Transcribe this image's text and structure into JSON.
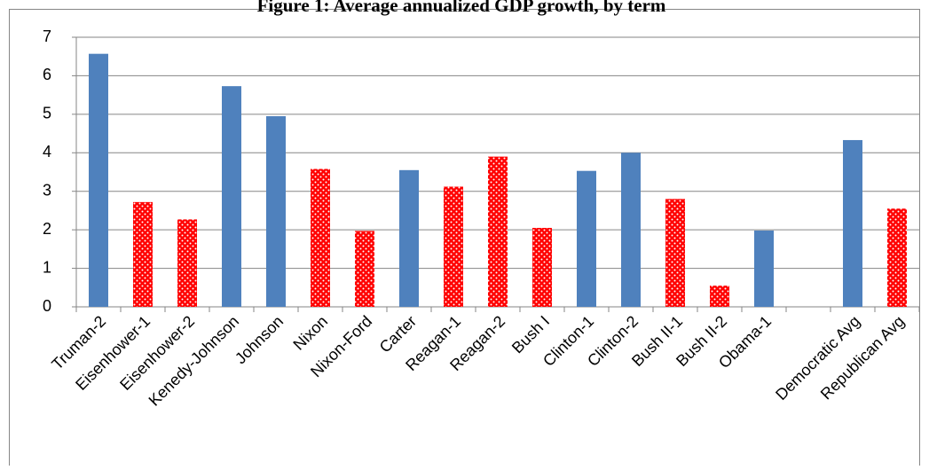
{
  "chart_data": {
    "type": "bar",
    "title": "Figure 1: Average annualized GDP growth, by term",
    "categories": [
      "Truman-2",
      "Eisenhower-1",
      "Eisenhower-2",
      "Kenedy-Johnson",
      "Johnson",
      "Nixon",
      "Nixon-Ford",
      "Carter",
      "Reagan-1",
      "Reagan-2",
      "Bush I",
      "Clinton-1",
      "Clinton-2",
      "Bush II-1",
      "Bush II-2",
      "Obama-1",
      null,
      "Democratic Avg",
      "Republican Avg"
    ],
    "values": [
      6.57,
      2.72,
      2.27,
      5.73,
      4.95,
      3.58,
      1.97,
      3.55,
      3.12,
      3.9,
      2.05,
      3.53,
      4.0,
      2.8,
      0.55,
      1.98,
      null,
      4.33,
      2.55
    ],
    "colors": [
      "#4f81bd",
      "#ff0000",
      "#ff0000",
      "#4f81bd",
      "#4f81bd",
      "#ff0000",
      "#ff0000",
      "#4f81bd",
      "#ff0000",
      "#ff0000",
      "#ff0000",
      "#4f81bd",
      "#4f81bd",
      "#ff0000",
      "#ff0000",
      "#4f81bd",
      null,
      "#4f81bd",
      "#ff0000"
    ],
    "ylim": [
      0,
      7
    ],
    "yticks": [
      0,
      1,
      2,
      3,
      4,
      5,
      6,
      7
    ],
    "grid": true
  }
}
